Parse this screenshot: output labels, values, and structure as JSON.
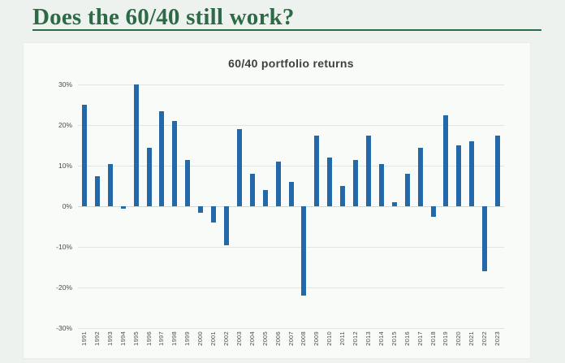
{
  "page": {
    "title": "Does the 60/40 still work?",
    "title_color": "#2d6a46",
    "background_color": "#eef2ef"
  },
  "chart_data": {
    "type": "bar",
    "title": "60/40 portfolio returns",
    "categories": [
      "1991",
      "1992",
      "1993",
      "1994",
      "1995",
      "1996",
      "1997",
      "1998",
      "1999",
      "2000",
      "2001",
      "2002",
      "2003",
      "2004",
      "2005",
      "2006",
      "2007",
      "2008",
      "2009",
      "2010",
      "2011",
      "2012",
      "2013",
      "2014",
      "2015",
      "2016",
      "2017",
      "2018",
      "2019",
      "2020",
      "2021",
      "2022",
      "2023"
    ],
    "values": [
      25,
      7.5,
      10.5,
      -0.5,
      30,
      14.5,
      23.5,
      21,
      11.5,
      -1.5,
      -4,
      -9.5,
      19,
      8,
      4,
      11,
      6,
      -22,
      17.5,
      12,
      5,
      11.5,
      17.5,
      10.5,
      1,
      8,
      14.5,
      -2.5,
      22.5,
      15,
      16,
      -16,
      17.5
    ],
    "value_unit": "%",
    "ytick_labels": [
      "30%",
      "20%",
      "10%",
      "0%",
      "-10%",
      "-20%",
      "-30%"
    ],
    "ytick_values": [
      30,
      20,
      10,
      0,
      -10,
      -20,
      -30
    ],
    "ylim": [
      -30,
      30
    ],
    "xlabel": "",
    "ylabel": "",
    "bar_color": "#2368a8",
    "grid": true,
    "legend": false,
    "x_tick_rotation_deg": 90
  }
}
